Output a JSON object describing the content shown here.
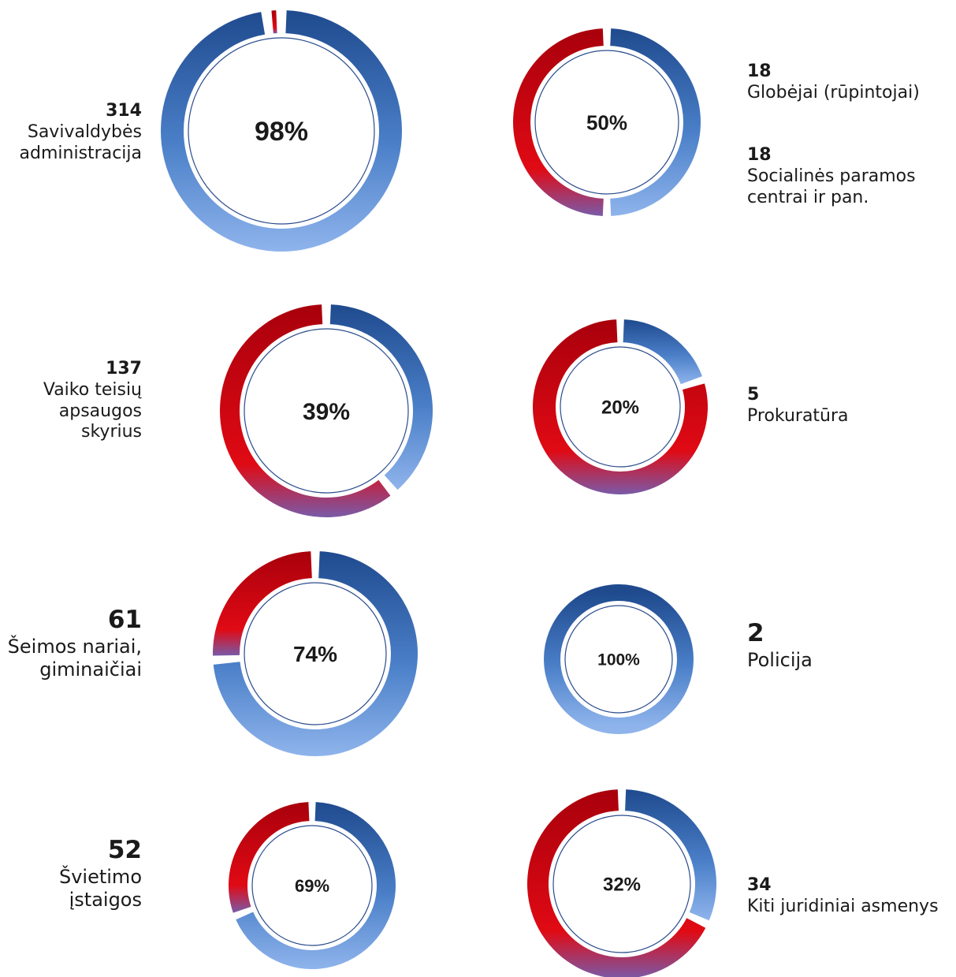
{
  "chart_data": [
    {
      "type": "pie",
      "count": "314",
      "name": "Savivaldybės\nadministracija",
      "percent": 98,
      "percent_label": "98%"
    },
    {
      "type": "pie",
      "count": "18",
      "name": "Globėjai (rūpintojai)",
      "count2": "18",
      "name2": "Socialinės paramos\ncentrai ir pan.",
      "percent": 50,
      "percent_label": "50%"
    },
    {
      "type": "pie",
      "count": "137",
      "name": "Vaiko teisių\napsaugos\nskyrius",
      "percent": 39,
      "percent_label": "39%"
    },
    {
      "type": "pie",
      "count": "5",
      "name": "Prokuratūra",
      "percent": 20,
      "percent_label": "20%"
    },
    {
      "type": "pie",
      "count": "61",
      "name": "Šeimos nariai,\ngiminaičiai",
      "percent": 74,
      "percent_label": "74%"
    },
    {
      "type": "pie",
      "count": "2",
      "name": "Policija",
      "percent": 100,
      "percent_label": "100%"
    },
    {
      "type": "pie",
      "count": "52",
      "name": "Švietimo\nįstaigos",
      "percent": 69,
      "percent_label": "69%"
    },
    {
      "type": "pie",
      "count": "34",
      "name": "Kiti juridiniai asmenys",
      "percent": 32,
      "percent_label": "32%"
    }
  ],
  "colors": {
    "positive": "#3f6fb8",
    "negative": "#c8101e"
  }
}
